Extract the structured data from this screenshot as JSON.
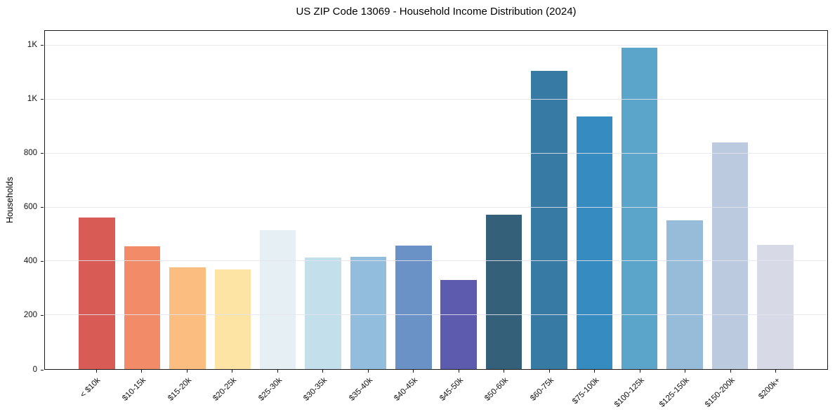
{
  "chart_data": {
    "type": "bar",
    "title": "US ZIP Code 13069 - Household Income Distribution (2024)",
    "xlabel": "",
    "ylabel": "Households",
    "categories": [
      "< $10k",
      "$10-15k",
      "$15-20k",
      "$20-25k",
      "$25-30k",
      "$30-35k",
      "$35-40k",
      "$40-45k",
      "$45-50k",
      "$50-60k",
      "$60-75k",
      "$75-100k",
      "$100-125k",
      "$125-150k",
      "$150-200k",
      "$200k+"
    ],
    "values": [
      562,
      455,
      378,
      370,
      515,
      413,
      416,
      459,
      332,
      572,
      1106,
      938,
      1193,
      551,
      842,
      462
    ],
    "bar_colors": [
      "#d85c55",
      "#f28b68",
      "#fcbd80",
      "#fde3a4",
      "#e6f0f4",
      "#c3dfec",
      "#93bddc",
      "#6b92c7",
      "#5c5bae",
      "#35607a",
      "#377ba4",
      "#368cc0",
      "#5ba5cb",
      "#96bcd9",
      "#bccadf",
      "#d7dae6"
    ],
    "ylim": [
      0,
      1255
    ],
    "yticks": {
      "values": [
        0,
        200,
        400,
        600,
        800,
        1000,
        1200
      ],
      "labels": [
        "0",
        "200",
        "400",
        "600",
        "800",
        "1K",
        "1K"
      ]
    },
    "grid": "horizontal-over-bars",
    "legend": "none",
    "background_color": "#ffffff",
    "spine_color": "#1b1b1b",
    "grid_color": "#e6e6ee"
  }
}
